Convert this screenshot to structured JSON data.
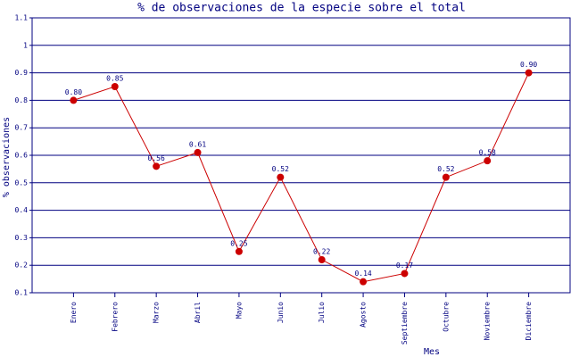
{
  "chart_data": {
    "type": "line",
    "title": "% de observaciones de la especie sobre el total",
    "x_label": "Mes",
    "y_label": "% observaciones",
    "categories": [
      "Enero",
      "Febrero",
      "Marzo",
      "Abril",
      "Mayo",
      "Junio",
      "Julio",
      "Agosto",
      "Septiembre",
      "Octubre",
      "Noviembre",
      "Diciembre"
    ],
    "values": [
      0.8,
      0.85,
      0.56,
      0.61,
      0.25,
      0.52,
      0.22,
      0.14,
      0.17,
      0.52,
      0.58,
      0.9
    ],
    "value_labels": [
      "0.80",
      "0.85",
      "0.56",
      "0.61",
      "0.25",
      "0.52",
      "0.22",
      "0.14",
      "0.17",
      "0.52",
      "0.58",
      "0.90"
    ],
    "color": "#cc0000",
    "ylim": [
      0.1,
      1.1
    ],
    "yticks": [
      0.1,
      0.2,
      0.3,
      0.4,
      0.5,
      0.6,
      0.7,
      0.8,
      0.9,
      1,
      1.1
    ],
    "grid": true
  }
}
